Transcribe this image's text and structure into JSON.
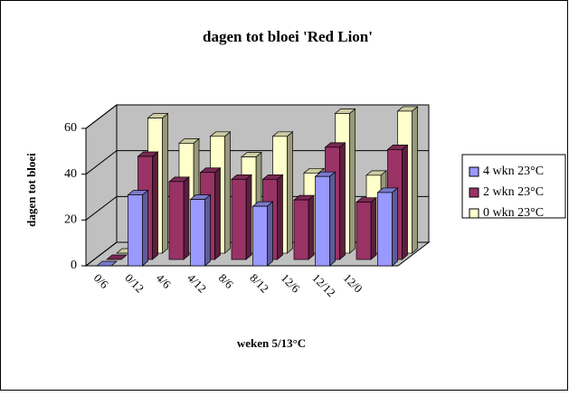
{
  "chart_data": {
    "type": "bar3d",
    "title": "dagen tot bloei 'Red Lion'",
    "y_label": "dagen tot bloei",
    "x_label": "weken 5/13°C",
    "categories": [
      "0/6",
      "0/12",
      "4/6",
      "4/12",
      "8/6",
      "8/12",
      "12/6",
      "12/12",
      "12/0",
      null
    ],
    "series": [
      {
        "name": "4 wkn 23°C",
        "color": "#9999ff",
        "values": [
          0,
          31,
          null,
          29,
          null,
          26,
          null,
          39,
          null,
          32
        ]
      },
      {
        "name": "2 wkn 23°C",
        "color": "#993366",
        "values": [
          0,
          45,
          34,
          38,
          35,
          35,
          26,
          49,
          25,
          48
        ]
      },
      {
        "name": "0 wkn 23°C",
        "color": "#ffffcc",
        "values": [
          0,
          59,
          48,
          51,
          42,
          51,
          35,
          61,
          34,
          62
        ]
      }
    ],
    "ylim": [
      0,
      60
    ],
    "yticks": [
      0,
      20,
      40,
      60
    ],
    "grid": true,
    "legend": "right"
  }
}
